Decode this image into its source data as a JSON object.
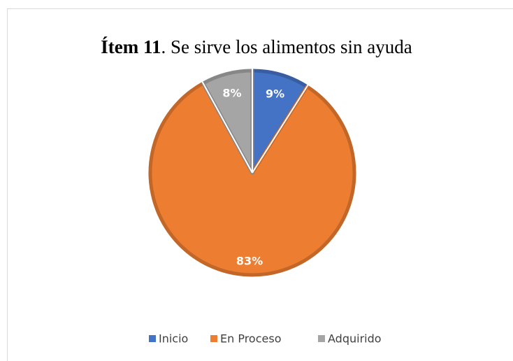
{
  "chart_data": {
    "type": "pie",
    "title_parts": [
      "Ítem 11",
      ". Se sirve los alimentos sin ayuda"
    ],
    "categories": [
      "Inicio",
      "En Proceso",
      "Adquirido"
    ],
    "values": [
      9,
      83,
      8
    ],
    "value_labels": [
      "9%",
      "83%",
      "8%"
    ],
    "colors": [
      "#4472c4",
      "#ed7d31",
      "#a5a5a5"
    ],
    "legend": "bottom"
  }
}
